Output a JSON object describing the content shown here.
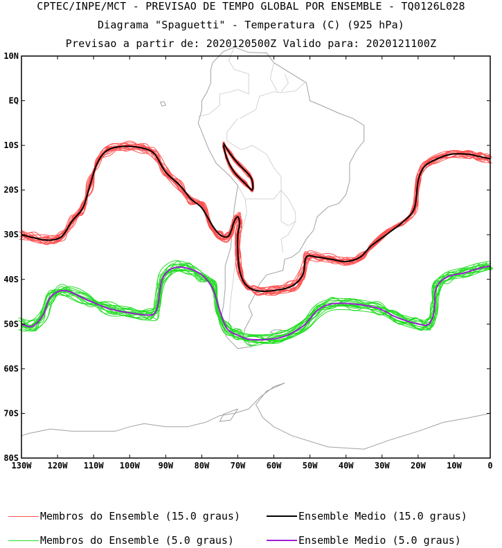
{
  "header": {
    "line1": "CPTEC/INPE/MCT - PREVISAO DE TEMPO GLOBAL POR ENSEMBLE - TQ0126L028",
    "line2": "Diagrama \"Spaguetti\" - Temperatura (C) (925 hPa)",
    "line3": "Previsao a partir de: 2020120500Z  Valido para: 2020121100Z"
  },
  "colors": {
    "members_15": "#ff5050",
    "mean_15": "#000000",
    "members_5": "#22dd22",
    "mean_5": "#9a1ed2",
    "coast": "#a0a0a0"
  },
  "legend": [
    {
      "label": "Membros do Ensemble (15.0 graus)",
      "color": "#ff5050"
    },
    {
      "label": "Ensemble Medio (15.0 graus)",
      "color": "#000000"
    },
    {
      "label": "Membros do Ensemble (5.0 graus)",
      "color": "#22dd22"
    },
    {
      "label": "Ensemble Medio (5.0 graus)",
      "color": "#9a1ed2"
    }
  ],
  "chart_data": {
    "type": "line",
    "title": "Diagrama \"Spaguetti\" - Temperatura (C) (925 hPa)",
    "xlim": [
      -130,
      0
    ],
    "ylim": [
      -80,
      10
    ],
    "x_ticks": [
      {
        "value": -130,
        "label": "130W"
      },
      {
        "value": -120,
        "label": "120W"
      },
      {
        "value": -110,
        "label": "110W"
      },
      {
        "value": -100,
        "label": "100W"
      },
      {
        "value": -90,
        "label": "90W"
      },
      {
        "value": -80,
        "label": "80W"
      },
      {
        "value": -70,
        "label": "70W"
      },
      {
        "value": -60,
        "label": "60W"
      },
      {
        "value": -50,
        "label": "50W"
      },
      {
        "value": -40,
        "label": "40W"
      },
      {
        "value": -30,
        "label": "30W"
      },
      {
        "value": -20,
        "label": "20W"
      },
      {
        "value": -10,
        "label": "10W"
      },
      {
        "value": 0,
        "label": "0"
      }
    ],
    "y_ticks": [
      {
        "value": 10,
        "label": "10N"
      },
      {
        "value": 0,
        "label": "EQ"
      },
      {
        "value": -10,
        "label": "10S"
      },
      {
        "value": -20,
        "label": "20S"
      },
      {
        "value": -30,
        "label": "30S"
      },
      {
        "value": -40,
        "label": "40S"
      },
      {
        "value": -50,
        "label": "50S"
      },
      {
        "value": -60,
        "label": "60S"
      },
      {
        "value": -70,
        "label": "70S"
      },
      {
        "value": -80,
        "label": "80S"
      }
    ],
    "series": [
      {
        "name": "Ensemble Medio (15.0 graus)",
        "members": 15,
        "segments": [
          [
            [
              -130,
              -30
            ],
            [
              -127,
              -30.6
            ],
            [
              -123,
              -31.2
            ],
            [
              -119,
              -30.5
            ],
            [
              -116,
              -27
            ],
            [
              -113,
              -24
            ],
            [
              -111,
              -19
            ],
            [
              -109,
              -14
            ],
            [
              -106,
              -11
            ],
            [
              -101,
              -10.2
            ],
            [
              -96,
              -10.7
            ],
            [
              -93,
              -12
            ],
            [
              -90,
              -16
            ],
            [
              -86,
              -19
            ],
            [
              -83,
              -22
            ],
            [
              -80,
              -24
            ],
            [
              -77,
              -28
            ],
            [
              -75,
              -30
            ],
            [
              -73,
              -30.5
            ],
            [
              -72,
              -29.5
            ],
            [
              -71,
              -27
            ],
            [
              -70,
              -26
            ],
            [
              -69.5,
              -27.5
            ],
            [
              -70,
              -30
            ],
            [
              -70,
              -34
            ],
            [
              -69.5,
              -38
            ],
            [
              -68,
              -41
            ],
            [
              -65,
              -42.5
            ],
            [
              -60,
              -42.5
            ],
            [
              -55,
              -41.5
            ],
            [
              -52,
              -39
            ],
            [
              -51,
              -35
            ],
            [
              -48,
              -35
            ],
            [
              -44,
              -35.5
            ],
            [
              -40,
              -36
            ],
            [
              -36,
              -35
            ],
            [
              -33,
              -32.5
            ],
            [
              -28,
              -29.5
            ],
            [
              -24,
              -27
            ],
            [
              -21,
              -24
            ],
            [
              -20,
              -18
            ],
            [
              -18.5,
              -15
            ],
            [
              -16,
              -13.5
            ],
            [
              -11,
              -12
            ],
            [
              -6,
              -12
            ],
            [
              -3,
              -12.5
            ],
            [
              0,
              -13
            ]
          ],
          [
            [
              -74,
              -9.5
            ],
            [
              -72,
              -12
            ],
            [
              -70,
              -14
            ],
            [
              -67,
              -16.5
            ],
            [
              -66,
              -18
            ],
            [
              -66,
              -20
            ],
            [
              -68,
              -18.5
            ],
            [
              -71,
              -16
            ],
            [
              -73,
              -13
            ],
            [
              -74,
              -10
            ]
          ]
        ]
      },
      {
        "name": "Ensemble Medio (5.0 graus)",
        "members": 15,
        "segments": [
          [
            [
              -130,
              -50
            ],
            [
              -127,
              -50.5
            ],
            [
              -124,
              -48
            ],
            [
              -122,
              -44
            ],
            [
              -118,
              -42.5
            ],
            [
              -112,
              -44.5
            ],
            [
              -106,
              -46.5
            ],
            [
              -100,
              -47.5
            ],
            [
              -95,
              -48
            ],
            [
              -93,
              -47.5
            ],
            [
              -92,
              -45
            ],
            [
              -91,
              -40
            ],
            [
              -88,
              -37.5
            ],
            [
              -84,
              -37.5
            ],
            [
              -80,
              -39
            ],
            [
              -77,
              -42
            ],
            [
              -75,
              -47
            ],
            [
              -73,
              -51
            ],
            [
              -70,
              -52.5
            ],
            [
              -66,
              -53.5
            ],
            [
              -58,
              -53
            ],
            [
              -52,
              -50.5
            ],
            [
              -48,
              -47
            ],
            [
              -44,
              -45.5
            ],
            [
              -38,
              -45.5
            ],
            [
              -31,
              -46.5
            ],
            [
              -26,
              -48.5
            ],
            [
              -20,
              -50
            ],
            [
              -17,
              -50
            ],
            [
              -15.5,
              -47
            ],
            [
              -15,
              -42
            ],
            [
              -12,
              -39.5
            ],
            [
              -7,
              -38.5
            ],
            [
              -3,
              -37.5
            ],
            [
              0,
              -37
            ]
          ]
        ]
      }
    ]
  }
}
